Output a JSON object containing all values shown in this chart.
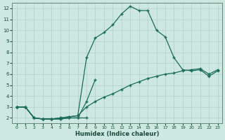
{
  "xlabel": "Humidex (Indice chaleur)",
  "background_color": "#cce8e0",
  "grid_color": "#b0cfc8",
  "line_color": "#1a6b5a",
  "xlim": [
    -0.5,
    23.5
  ],
  "ylim": [
    1.5,
    12.5
  ],
  "xticks": [
    0,
    1,
    2,
    3,
    4,
    5,
    6,
    7,
    8,
    9,
    10,
    11,
    12,
    13,
    14,
    15,
    16,
    17,
    18,
    19,
    20,
    21,
    22,
    23
  ],
  "yticks": [
    2,
    3,
    4,
    5,
    6,
    7,
    8,
    9,
    10,
    11,
    12
  ],
  "series": [
    {
      "x": [
        0,
        1,
        2,
        3,
        4,
        5,
        6,
        7,
        8
      ],
      "y": [
        3.0,
        3.0,
        2.0,
        1.9,
        1.9,
        1.9,
        2.0,
        2.0,
        2.0
      ]
    },
    {
      "x": [
        0,
        1,
        2,
        3,
        4,
        5,
        6,
        7,
        8,
        9
      ],
      "y": [
        3.0,
        3.0,
        2.0,
        1.9,
        1.9,
        1.9,
        2.0,
        2.0,
        3.5,
        5.5
      ]
    },
    {
      "x": [
        0,
        1,
        2,
        3,
        4,
        5,
        6,
        7,
        8,
        9,
        10,
        11,
        12,
        13,
        14,
        15,
        16,
        17,
        18,
        19,
        20,
        21,
        22,
        23
      ],
      "y": [
        3.0,
        3.0,
        2.0,
        1.9,
        1.9,
        2.0,
        2.1,
        2.2,
        3.0,
        3.5,
        3.9,
        4.2,
        4.6,
        5.0,
        5.3,
        5.6,
        5.8,
        6.0,
        6.1,
        6.3,
        6.4,
        6.5,
        6.0,
        6.4
      ]
    },
    {
      "x": [
        0,
        1,
        2,
        3,
        4,
        5,
        6,
        7,
        8,
        9,
        10,
        11,
        12,
        13,
        14,
        15,
        16,
        17,
        18,
        19,
        20,
        21,
        22,
        23
      ],
      "y": [
        3.0,
        3.0,
        2.0,
        1.9,
        1.9,
        2.0,
        2.1,
        2.2,
        7.5,
        9.3,
        9.8,
        10.5,
        11.5,
        12.2,
        11.8,
        11.8,
        10.0,
        9.4,
        7.5,
        6.4,
        6.3,
        6.4,
        5.8,
        6.3
      ]
    }
  ]
}
